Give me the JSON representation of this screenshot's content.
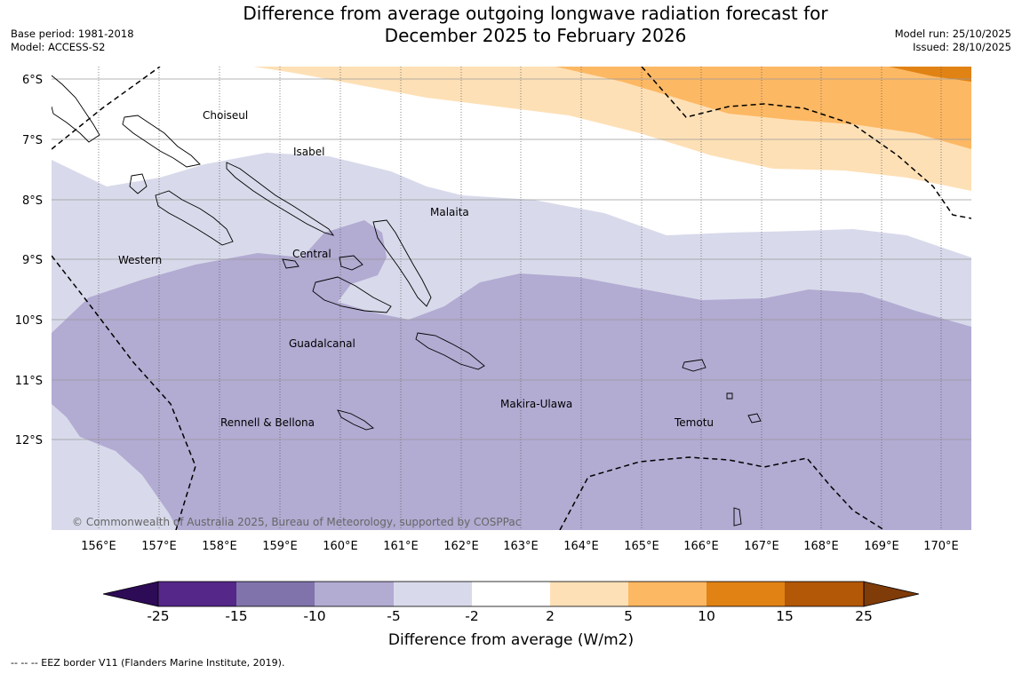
{
  "title": {
    "line1": "Difference from average outgoing longwave radiation forecast for",
    "line2": "December 2025 to February 2026"
  },
  "meta": {
    "base_period": "Base period: 1981-2018",
    "model": "Model: ACCESS-S2",
    "model_run": "Model run: 25/10/2025",
    "issued": "Issued: 28/10/2025"
  },
  "map": {
    "lon_ticks": [
      "156°E",
      "157°E",
      "158°E",
      "159°E",
      "160°E",
      "161°E",
      "162°E",
      "163°E",
      "164°E",
      "165°E",
      "166°E",
      "167°E",
      "168°E",
      "169°E",
      "170°E"
    ],
    "lat_ticks": [
      "6°S",
      "7°S",
      "8°S",
      "9°S",
      "10°S",
      "11°S",
      "12°S"
    ],
    "provinces": [
      "Choiseul",
      "Isabel",
      "Malaita",
      "Western",
      "Central",
      "Guadalcanal",
      "Rennell & Bellona",
      "Makira-Ulawa",
      "Temotu"
    ],
    "copyright": "© Commonwealth of Australia 2025, Bureau of Meteorology, supported by COSPPac"
  },
  "colorbar": {
    "ticks": [
      "-25",
      "-15",
      "-10",
      "-5",
      "-2",
      "2",
      "5",
      "10",
      "15",
      "25"
    ],
    "colors": [
      "#2d0b57",
      "#542788",
      "#8073ac",
      "#b2abd2",
      "#d8daeb",
      "#ffffff",
      "#fee0b6",
      "#fdb863",
      "#e08214",
      "#b35806",
      "#7f3b08"
    ],
    "title": "Difference from average (W/m2)"
  },
  "legend": {
    "eez": "--  --  -- EEZ border V11 (Flanders Marine Institute, 2019)."
  }
}
